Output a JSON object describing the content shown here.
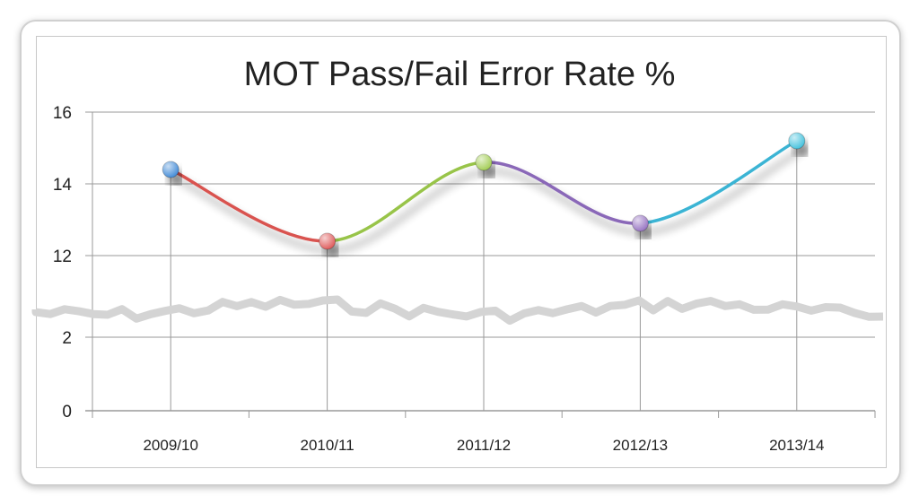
{
  "chart_data": {
    "type": "line",
    "title": "MOT Pass/Fail Error Rate %",
    "xlabel": "",
    "ylabel": "",
    "categories": [
      "2009/10",
      "2010/11",
      "2011/12",
      "2012/13",
      "2013/14"
    ],
    "values": [
      14.4,
      12.4,
      14.6,
      12.9,
      15.2
    ],
    "y_ticks": [
      "16",
      "14",
      "12",
      "2",
      "0"
    ],
    "ylim": [
      0,
      16
    ],
    "axis_break": [
      3,
      12
    ],
    "grid": true,
    "legend": "none",
    "point_colors": [
      "#4a8fd8",
      "#e06060",
      "#a6cf5a",
      "#9a78c4",
      "#4cc4de"
    ],
    "segment_colors": [
      "#d9534f",
      "#98c44a",
      "#8a68b8",
      "#3ab4d4"
    ]
  }
}
